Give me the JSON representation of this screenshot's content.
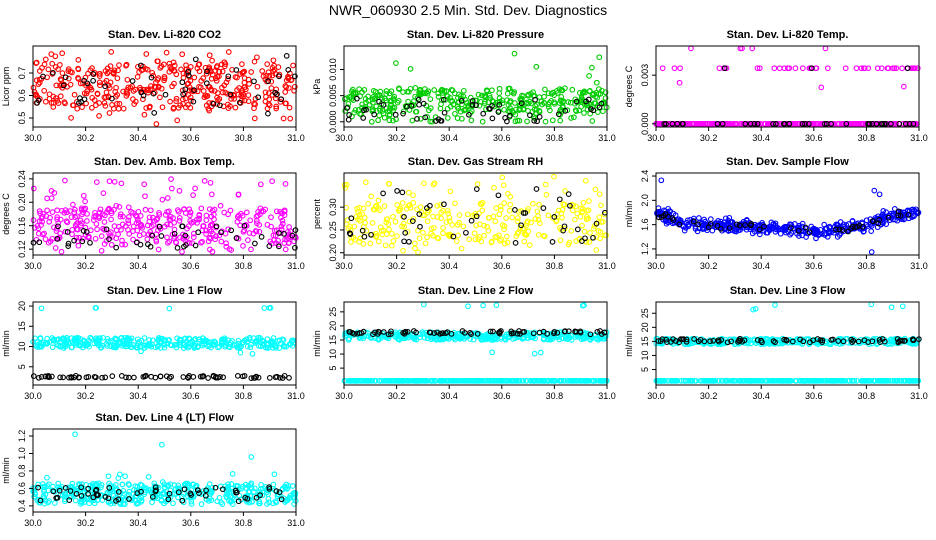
{
  "figure": {
    "title": "NWR_060930  2.5 Min. Std. Dev. Diagnostics"
  },
  "chart_data": [
    {
      "type": "scatter",
      "title": "Stan. Dev. Li-820 CO2",
      "ylabel": "Licor ppm",
      "xlim": [
        30.0,
        31.0
      ],
      "ylim": [
        0.46,
        0.82
      ],
      "xticks": [
        "30.0",
        "30.2",
        "30.4",
        "30.6",
        "30.8",
        "31.0"
      ],
      "yticks": [
        {
          "v": 0.5,
          "label": "0.5"
        },
        {
          "v": 0.6,
          "label": "0.6"
        },
        {
          "v": 0.7,
          "label": "0.7"
        }
      ],
      "series": [
        {
          "color": "#ff0000",
          "bands": [
            {
              "lo": 0.54,
              "hi": 0.74,
              "n": 380
            },
            {
              "lo": 0.74,
              "hi": 0.8,
              "n": 24
            },
            {
              "lo": 0.47,
              "hi": 0.54,
              "n": 10
            }
          ]
        },
        {
          "color": "#000000",
          "bands": [
            {
              "lo": 0.56,
              "hi": 0.72,
              "n": 45
            },
            {
              "lo": 0.5,
              "hi": 0.56,
              "n": 3
            },
            {
              "lo": 0.72,
              "hi": 0.79,
              "n": 3
            }
          ]
        }
      ]
    },
    {
      "type": "scatter",
      "title": "Stan. Dev. Li-820 Pressure",
      "ylabel": "kPa",
      "xlim": [
        30.0,
        31.0
      ],
      "ylim": [
        -0.001,
        0.0145
      ],
      "xticks": [
        "30.0",
        "30.2",
        "30.4",
        "30.6",
        "30.8",
        "31.0"
      ],
      "yticks": [
        {
          "v": 0.0,
          "label": "0.000"
        },
        {
          "v": 0.005,
          "label": "0.005"
        },
        {
          "v": 0.01,
          "label": "0.010"
        }
      ],
      "series": [
        {
          "color": "#00cc00",
          "bands": [
            {
              "lo": 0.002,
              "hi": 0.0065,
              "n": 320
            },
            {
              "lo": 0.0,
              "hi": 0.002,
              "n": 55
            },
            {
              "lo": 0.0068,
              "hi": 0.0135,
              "n": 8
            }
          ]
        },
        {
          "color": "#000000",
          "bands": [
            {
              "lo": 0.0,
              "hi": 0.0045,
              "n": 55
            }
          ]
        }
      ]
    },
    {
      "type": "scatter",
      "title": "Stan. Dev. Li-820 Temp.",
      "ylabel": "degrees C",
      "xlim": [
        30.0,
        31.0
      ],
      "ylim": [
        -0.0002,
        0.0048
      ],
      "xticks": [
        "30.0",
        "30.2",
        "30.4",
        "30.6",
        "30.8",
        "31.0"
      ],
      "yticks": [
        {
          "v": 0.0,
          "label": "0.000"
        },
        {
          "v": 0.003,
          "label": "0.003"
        }
      ],
      "series": [
        {
          "color": "#ff00ff",
          "bands": [
            {
              "lo": 0.0,
              "hi": 0.0,
              "n": 300
            },
            {
              "lo": 0.00343,
              "hi": 0.00343,
              "n": 42
            },
            {
              "lo": 0.00465,
              "hi": 0.00465,
              "n": 5
            },
            {
              "lo": 0.0022,
              "hi": 0.0027,
              "n": 3
            }
          ]
        },
        {
          "color": "#000000",
          "bands": [
            {
              "lo": 0.0,
              "hi": 0.0,
              "n": 40
            },
            {
              "lo": 0.00343,
              "hi": 0.00343,
              "n": 3
            }
          ]
        }
      ]
    },
    {
      "type": "scatter",
      "title": "Stan. Dev. Amb. Box Temp.",
      "ylabel": "degrees C",
      "xlim": [
        30.0,
        31.0
      ],
      "ylim": [
        0.11,
        0.25
      ],
      "xticks": [
        "30.0",
        "30.2",
        "30.4",
        "30.6",
        "30.8",
        "31.0"
      ],
      "yticks": [
        {
          "v": 0.12,
          "label": "0.12"
        },
        {
          "v": 0.16,
          "label": "0.16"
        },
        {
          "v": 0.2,
          "label": "0.20"
        },
        {
          "v": 0.24,
          "label": "0.24"
        }
      ],
      "series": [
        {
          "color": "#ff00ff",
          "bands": [
            {
              "lo": 0.13,
              "hi": 0.19,
              "n": 330
            },
            {
              "lo": 0.19,
              "hi": 0.24,
              "n": 35
            },
            {
              "lo": 0.115,
              "hi": 0.13,
              "n": 20
            }
          ]
        },
        {
          "color": "#000000",
          "bands": [
            {
              "lo": 0.12,
              "hi": 0.16,
              "n": 45
            }
          ]
        }
      ]
    },
    {
      "type": "scatter",
      "title": "Stan. Dev. Gas Stream RH",
      "ylabel": "percent",
      "xlim": [
        30.0,
        31.0
      ],
      "ylim": [
        0.195,
        0.375
      ],
      "xticks": [
        "30.0",
        "30.2",
        "30.4",
        "30.6",
        "30.8",
        "31.0"
      ],
      "yticks": [
        {
          "v": 0.2,
          "label": "0.20"
        },
        {
          "v": 0.25,
          "label": "0.25"
        },
        {
          "v": 0.3,
          "label": "0.30"
        }
      ],
      "series": [
        {
          "color": "#ffff00",
          "bands": [
            {
              "lo": 0.22,
              "hi": 0.31,
              "n": 260
            },
            {
              "lo": 0.31,
              "hi": 0.37,
              "n": 28
            },
            {
              "lo": 0.2,
              "hi": 0.22,
              "n": 10
            }
          ]
        },
        {
          "color": "#000000",
          "bands": [
            {
              "lo": 0.22,
              "hi": 0.34,
              "n": 45
            }
          ]
        }
      ]
    },
    {
      "type": "scatter",
      "title": "Stan. Dev. Sample Flow",
      "ylabel": "ml/min",
      "xlim": [
        30.0,
        31.0
      ],
      "ylim": [
        1.1,
        2.45
      ],
      "xticks": [
        "30.0",
        "30.2",
        "30.4",
        "30.6",
        "30.8",
        "31.0"
      ],
      "yticks": [
        {
          "v": 1.2,
          "label": "1.2"
        },
        {
          "v": 1.6,
          "label": "1.6"
        },
        {
          "v": 2.0,
          "label": "2.0"
        },
        {
          "v": 2.4,
          "label": "2.4"
        }
      ],
      "trend": [
        [
          30.0,
          1.8
        ],
        [
          30.1,
          1.62
        ],
        [
          30.3,
          1.58
        ],
        [
          30.5,
          1.52
        ],
        [
          30.7,
          1.5
        ],
        [
          30.8,
          1.6
        ],
        [
          30.9,
          1.75
        ],
        [
          31.0,
          1.8
        ]
      ],
      "series": [
        {
          "color": "#0000ff",
          "spread": 0.16,
          "n": 420,
          "outliers": [
            [
              30.02,
              2.33
            ],
            [
              30.83,
              2.16
            ],
            [
              30.85,
              2.1
            ],
            [
              30.82,
              1.15
            ]
          ]
        },
        {
          "color": "#000000",
          "spread": 0.08,
          "n": 45
        }
      ]
    },
    {
      "type": "scatter",
      "title": "Stan. Dev. Line 1 Flow",
      "ylabel": "ml/min",
      "xlim": [
        30.0,
        31.0
      ],
      "ylim": [
        0.5,
        21.0
      ],
      "xticks": [
        "30.0",
        "30.2",
        "30.4",
        "30.6",
        "30.8",
        "31.0"
      ],
      "yticks": [
        {
          "v": 5,
          "label": "5"
        },
        {
          "v": 10,
          "label": "10"
        },
        {
          "v": 15,
          "label": "15"
        },
        {
          "v": 20,
          "label": "20"
        }
      ],
      "series": [
        {
          "color": "#00ffff",
          "bands": [
            {
              "lo": 9.6,
              "hi": 12.2,
              "n": 330
            },
            {
              "lo": 19.4,
              "hi": 19.8,
              "n": 7
            },
            {
              "lo": 7.5,
              "hi": 9.0,
              "n": 3
            }
          ]
        },
        {
          "color": "#000000",
          "bands": [
            {
              "lo": 2.2,
              "hi": 2.8,
              "n": 70
            }
          ]
        }
      ]
    },
    {
      "type": "scatter",
      "title": "Stan. Dev. Line 2 Flow",
      "ylabel": "ml/min",
      "xlim": [
        30.0,
        31.0
      ],
      "ylim": [
        -1.0,
        28.5
      ],
      "xticks": [
        "30.0",
        "30.2",
        "30.4",
        "30.6",
        "30.8",
        "31.0"
      ],
      "yticks": [
        {
          "v": 5,
          "label": "5"
        },
        {
          "v": 10,
          "label": "10"
        },
        {
          "v": 15,
          "label": "15"
        },
        {
          "v": 20,
          "label": "20"
        },
        {
          "v": 25,
          "label": "25"
        }
      ],
      "series": [
        {
          "color": "#00ffff",
          "bands": [
            {
              "lo": 15.0,
              "hi": 17.8,
              "n": 330
            },
            {
              "lo": 0.5,
              "hi": 0.5,
              "n": 300
            },
            {
              "lo": 27.0,
              "hi": 27.8,
              "n": 6
            },
            {
              "lo": 10.0,
              "hi": 12.5,
              "n": 3
            }
          ]
        },
        {
          "color": "#000000",
          "bands": [
            {
              "lo": 17.0,
              "hi": 18.2,
              "n": 75
            }
          ]
        }
      ]
    },
    {
      "type": "scatter",
      "title": "Stan. Dev. Line 3 Flow",
      "ylabel": "ml/min",
      "xlim": [
        30.0,
        31.0
      ],
      "ylim": [
        -0.5,
        29.0
      ],
      "xticks": [
        "30.0",
        "30.2",
        "30.4",
        "30.6",
        "30.8",
        "31.0"
      ],
      "yticks": [
        {
          "v": 5,
          "label": "5"
        },
        {
          "v": 10,
          "label": "10"
        },
        {
          "v": 15,
          "label": "15"
        },
        {
          "v": 20,
          "label": "20"
        },
        {
          "v": 25,
          "label": "25"
        }
      ],
      "series": [
        {
          "color": "#00ffff",
          "bands": [
            {
              "lo": 14.0,
              "hi": 16.0,
              "n": 320
            },
            {
              "lo": 1.0,
              "hi": 1.0,
              "n": 300
            },
            {
              "lo": 26.0,
              "hi": 28.5,
              "n": 6
            }
          ]
        },
        {
          "color": "#000000",
          "bands": [
            {
              "lo": 14.6,
              "hi": 16.0,
              "n": 75
            }
          ]
        }
      ]
    },
    {
      "type": "scatter",
      "title": "Stan. Dev. Line 4 (LT) Flow",
      "ylabel": "ml/min",
      "xlim": [
        30.0,
        31.0
      ],
      "ylim": [
        0.33,
        1.28
      ],
      "xticks": [
        "30.0",
        "30.2",
        "30.4",
        "30.6",
        "30.8",
        "31.0"
      ],
      "yticks": [
        {
          "v": 0.4,
          "label": "0.4"
        },
        {
          "v": 0.6,
          "label": "0.6"
        },
        {
          "v": 0.8,
          "label": "0.8"
        },
        {
          "v": 1.0,
          "label": "1.0"
        },
        {
          "v": 1.2,
          "label": "1.2"
        }
      ],
      "series": [
        {
          "color": "#00ffff",
          "bands": [
            {
              "lo": 0.42,
              "hi": 0.66,
              "n": 420
            },
            {
              "lo": 0.66,
              "hi": 0.78,
              "n": 8
            }
          ],
          "outliers": [
            [
              30.16,
              1.22
            ],
            [
              30.49,
              1.1
            ],
            [
              30.83,
              0.96
            ],
            [
              30.33,
              0.76
            ]
          ]
        },
        {
          "color": "#000000",
          "bands": [
            {
              "lo": 0.45,
              "hi": 0.62,
              "n": 60
            }
          ]
        }
      ]
    }
  ]
}
